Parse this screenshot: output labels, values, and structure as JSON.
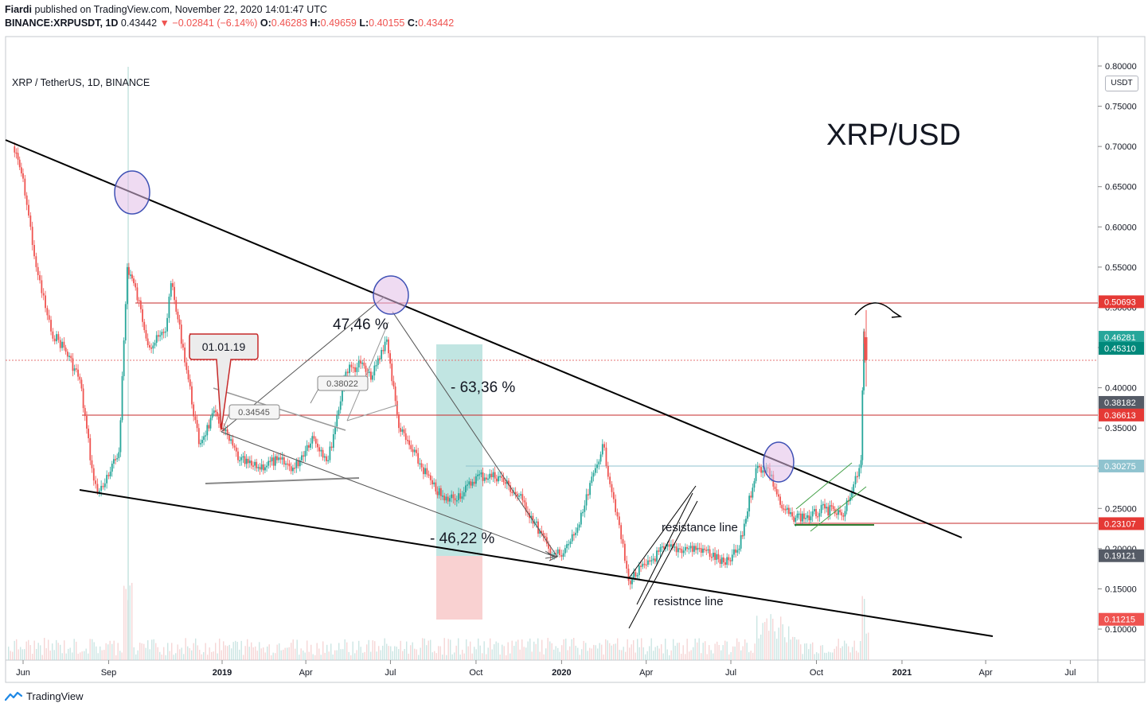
{
  "header": {
    "author": "Fiardi",
    "published_text": "published on TradingView.com, November 22, 2020 14:01:47 UTC",
    "symbol": "BINANCE:XRPUSDT, 1D",
    "last": "0.43442",
    "change": "▼ −0.02841 (−6.14%)",
    "o_label": "O:",
    "o_val": "0.46283",
    "h_label": "H:",
    "h_val": "0.49659",
    "l_label": "L:",
    "l_val": "0.40155",
    "c_label": "C:",
    "c_val": "0.43442"
  },
  "chart_header": {
    "symbol_label": "XRP / TetherUS, 1D, BINANCE",
    "currency_button": "USDT"
  },
  "footer": {
    "brand": "TradingView"
  },
  "chart_data": {
    "type": "line",
    "title": "XRP/USD",
    "ylim": [
      0.07,
      0.81
    ],
    "y_ticks": [
      "0.80000",
      "0.75000",
      "0.70000",
      "0.65000",
      "0.60000",
      "0.55000",
      "0.50000",
      "0.45000",
      "0.40000",
      "0.35000",
      "0.30000",
      "0.25000",
      "0.20000",
      "0.15000",
      "0.10000"
    ],
    "x_ticks": [
      "Jun",
      "Sep",
      "2019",
      "Apr",
      "Jul",
      "Oct",
      "2020",
      "Apr",
      "Jul",
      "Oct",
      "2021",
      "Apr",
      "Jul"
    ],
    "price_labels": [
      {
        "value": "0.50693",
        "num": 0.50693,
        "color": "#e53935"
      },
      {
        "value": "0.46281",
        "num": 0.46281,
        "color": "#26a69a"
      },
      {
        "value": "0.45310",
        "num": 0.4531,
        "color": "#00897b"
      },
      {
        "value": "0.38182",
        "num": 0.38182,
        "color": "#555b66"
      },
      {
        "value": "0.36613",
        "num": 0.36613,
        "color": "#e53935"
      },
      {
        "value": "0.30275",
        "num": 0.30275,
        "color": "#8fc3cf"
      },
      {
        "value": "0.23107",
        "num": 0.23107,
        "color": "#e53935"
      },
      {
        "value": "0.19121",
        "num": 0.19121,
        "color": "#555b66"
      },
      {
        "value": "0.11215",
        "num": 0.11215,
        "color": "#ef5350"
      }
    ],
    "annotations": {
      "pct_up": "47,46 %",
      "pct_down_big": "- 63,36 %",
      "pct_down": "- 46,22 %",
      "date_callout": "01.01.19",
      "point_a": "0.34545",
      "point_b": "0.38022",
      "resistance": "resistance line",
      "support": "resistnce line"
    },
    "series": [
      {
        "name": "XRPUSDT",
        "x": [
          "2018-05-21",
          "2018-06-01",
          "2018-06-15",
          "2018-07-01",
          "2018-07-15",
          "2018-08-01",
          "2018-08-14",
          "2018-08-20",
          "2018-09-01",
          "2018-09-12",
          "2018-09-21",
          "2018-09-28",
          "2018-10-15",
          "2018-11-01",
          "2018-11-07",
          "2018-11-20",
          "2018-12-07",
          "2018-12-25",
          "2019-01-01",
          "2019-01-20",
          "2019-02-07",
          "2019-03-01",
          "2019-03-20",
          "2019-04-08",
          "2019-04-25",
          "2019-05-14",
          "2019-05-30",
          "2019-06-10",
          "2019-06-27",
          "2019-07-10",
          "2019-07-25",
          "2019-08-15",
          "2019-08-28",
          "2019-09-18",
          "2019-10-01",
          "2019-10-25",
          "2019-11-20",
          "2019-12-18",
          "2020-01-01",
          "2020-01-20",
          "2020-02-14",
          "2020-03-01",
          "2020-03-13",
          "2020-04-01",
          "2020-04-20",
          "2020-05-15",
          "2020-06-01",
          "2020-06-25",
          "2020-07-10",
          "2020-07-28",
          "2020-08-10",
          "2020-08-25",
          "2020-09-05",
          "2020-09-25",
          "2020-10-10",
          "2020-10-30",
          "2020-11-10",
          "2020-11-18",
          "2020-11-21",
          "2020-11-22"
        ],
        "values": [
          0.7,
          0.66,
          0.55,
          0.47,
          0.45,
          0.41,
          0.3,
          0.27,
          0.29,
          0.32,
          0.55,
          0.53,
          0.45,
          0.47,
          0.53,
          0.45,
          0.33,
          0.37,
          0.35,
          0.31,
          0.3,
          0.31,
          0.3,
          0.34,
          0.31,
          0.42,
          0.43,
          0.41,
          0.46,
          0.35,
          0.32,
          0.28,
          0.26,
          0.27,
          0.29,
          0.29,
          0.26,
          0.2,
          0.19,
          0.23,
          0.33,
          0.24,
          0.16,
          0.18,
          0.2,
          0.2,
          0.2,
          0.18,
          0.2,
          0.3,
          0.3,
          0.25,
          0.24,
          0.24,
          0.25,
          0.24,
          0.28,
          0.31,
          0.47,
          0.43442
        ]
      }
    ]
  }
}
